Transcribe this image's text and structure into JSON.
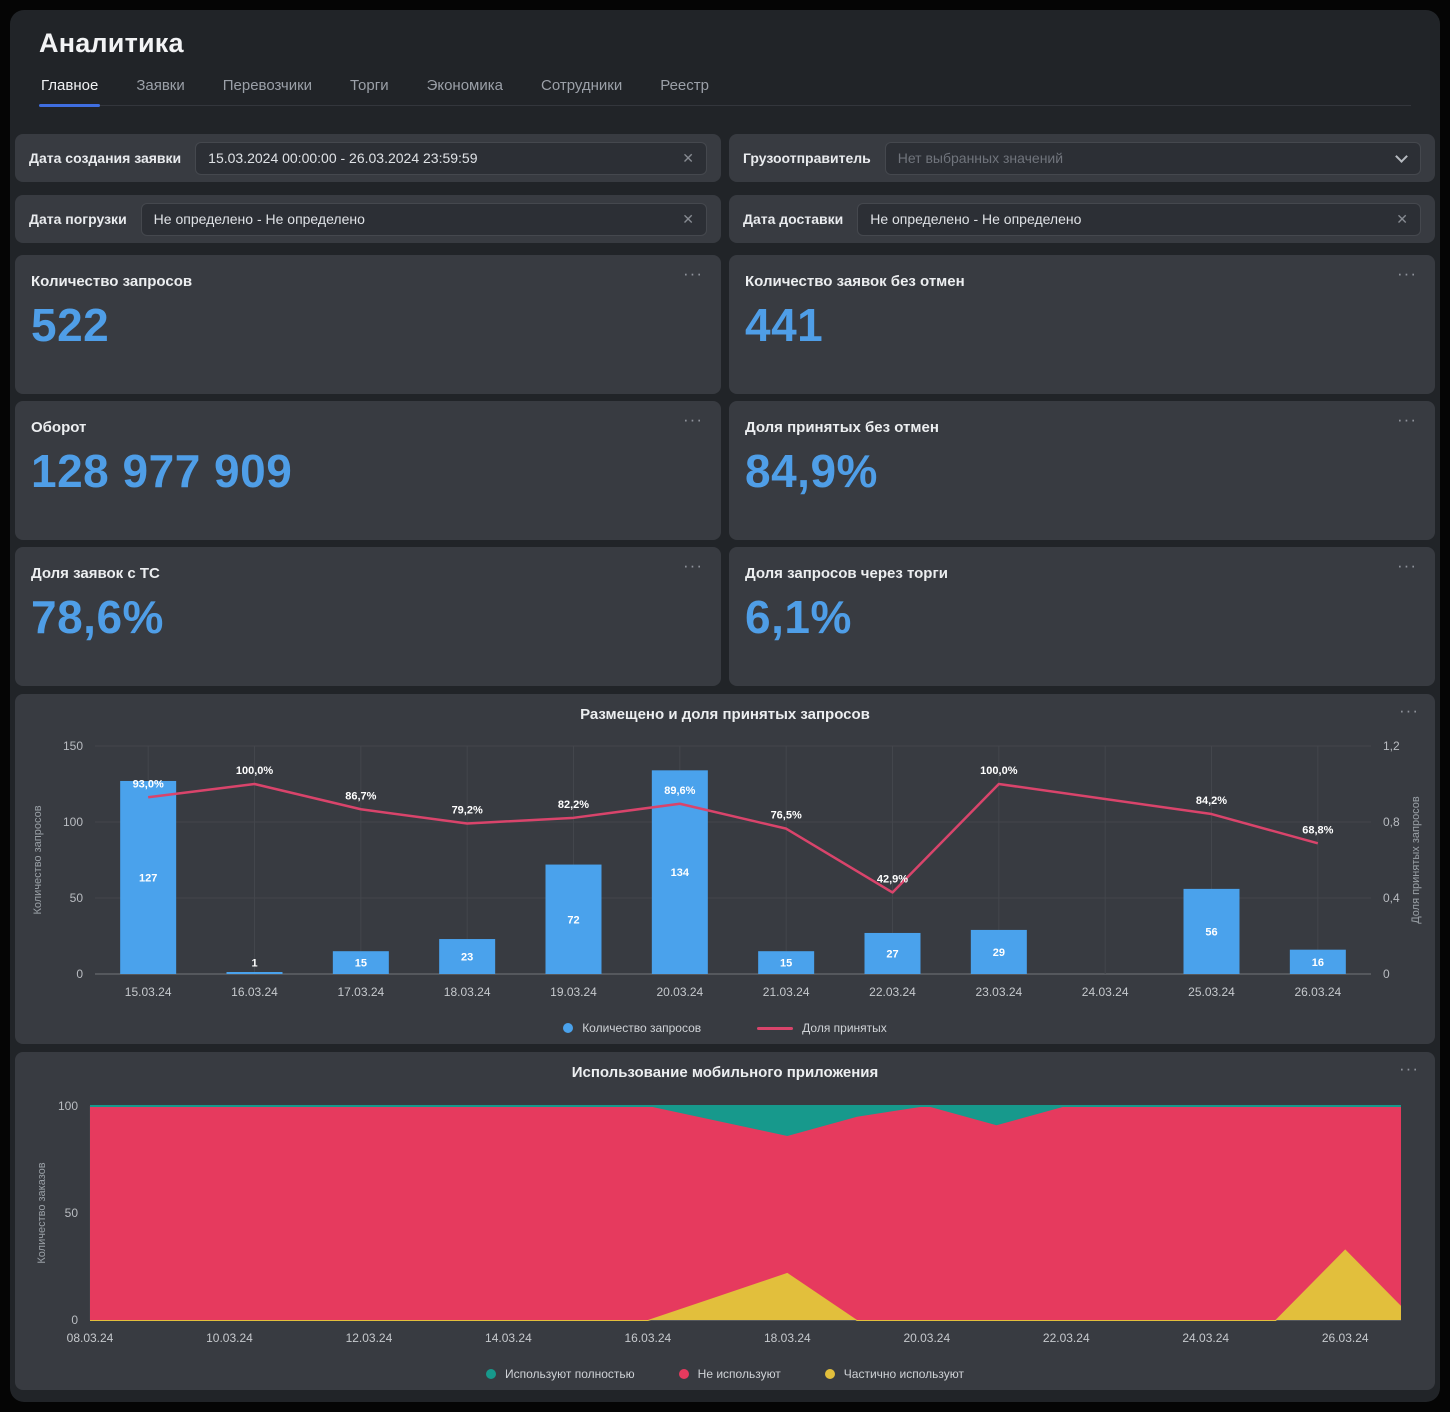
{
  "page_title": "Аналитика",
  "icons": {
    "more_menu": "···",
    "clear": "✕"
  },
  "colors": {
    "accent_blue": "#4f9ee7",
    "bar_blue": "#4aa2ec",
    "line_red": "#d9446b",
    "tab_underline": "#3f6ee0",
    "card_bg": "#383b41",
    "page_bg": "#212428"
  },
  "tabs": [
    {
      "label": "Главное",
      "active": true
    },
    {
      "label": "Заявки",
      "active": false
    },
    {
      "label": "Перевозчики",
      "active": false
    },
    {
      "label": "Торги",
      "active": false
    },
    {
      "label": "Экономика",
      "active": false
    },
    {
      "label": "Сотрудники",
      "active": false
    },
    {
      "label": "Реестр",
      "active": false
    }
  ],
  "filters": {
    "creation_date": {
      "label": "Дата создания заявки",
      "value": "15.03.2024 00:00:00 - 26.03.2024 23:59:59"
    },
    "shipper": {
      "label": "Грузоотправитель",
      "placeholder": "Нет выбранных значений"
    },
    "loading_date": {
      "label": "Дата погрузки",
      "value": "Не определено - Не определено"
    },
    "delivery_date": {
      "label": "Дата доставки",
      "value": "Не определено - Не определено"
    }
  },
  "kpi_cards": [
    {
      "title": "Количество запросов",
      "value": "522"
    },
    {
      "title": "Количество заявок без отмен",
      "value": "441"
    },
    {
      "title": "Оборот",
      "value": "128 977 909"
    },
    {
      "title": "Доля принятых без отмен",
      "value": "84,9%"
    },
    {
      "title": "Доля заявок с ТС",
      "value": "78,6%"
    },
    {
      "title": "Доля запросов через торги",
      "value": "6,1%"
    }
  ],
  "chart_data": [
    {
      "type": "bar",
      "title": "Размещено и доля принятых запросов",
      "categories": [
        "15.03.24",
        "16.03.24",
        "17.03.24",
        "18.03.24",
        "19.03.24",
        "20.03.24",
        "21.03.24",
        "22.03.24",
        "23.03.24",
        "24.03.24",
        "25.03.24",
        "26.03.24"
      ],
      "bar_series": {
        "name": "Количество запросов",
        "color": "#4aa2ec",
        "values": [
          127,
          1,
          15,
          23,
          72,
          134,
          15,
          27,
          29,
          null,
          56,
          16
        ],
        "labels": [
          "127",
          "1",
          "15",
          "23",
          "72",
          "134",
          "15",
          "27",
          "29",
          "",
          "56",
          "16"
        ]
      },
      "line_series": {
        "name": "Доля принятых",
        "color": "#d9446b",
        "values": [
          0.93,
          1.0,
          0.867,
          0.792,
          0.822,
          0.896,
          0.765,
          0.429,
          1.0,
          null,
          0.842,
          0.688
        ],
        "labels": [
          "93,0%",
          "100,0%",
          "86,7%",
          "79,2%",
          "82,2%",
          "89,6%",
          "76,5%",
          "42,9%",
          "100,0%",
          "",
          "84,2%",
          "68,8%"
        ]
      },
      "left_axis": {
        "label": "Количество запросов",
        "ticks": [
          0,
          50,
          100,
          150
        ],
        "max": 150
      },
      "right_axis": {
        "label": "Доля принятых запросов",
        "ticks": [
          "0",
          "0,4",
          "0,8",
          "1,2"
        ],
        "tick_values": [
          0,
          0.4,
          0.8,
          1.2
        ],
        "max": 1.2
      },
      "legend_position": "bottom"
    },
    {
      "type": "area",
      "title": "Использование мобильного приложения",
      "x_tick_labels": [
        "08.03.24",
        "10.03.24",
        "12.03.24",
        "14.03.24",
        "16.03.24",
        "18.03.24",
        "20.03.24",
        "22.03.24",
        "24.03.24",
        "26.03.24"
      ],
      "x_days_range": "08.03.24 - 27.03.24 (daily points, last point clipped at right edge)",
      "series": [
        {
          "name": "Частично используют",
          "color": "#e2bf3c",
          "values": [
            0,
            0,
            0,
            0,
            0,
            0,
            0,
            0,
            0,
            11,
            22,
            0,
            0,
            0,
            0,
            0,
            0,
            0,
            33,
            0
          ]
        },
        {
          "name": "Не используют",
          "color": "#e63a5e",
          "values": [
            100,
            100,
            100,
            100,
            100,
            100,
            100,
            100,
            100,
            82,
            64,
            95,
            100,
            91,
            100,
            100,
            100,
            100,
            67,
            100
          ]
        },
        {
          "name": "Используют полностью",
          "color": "#17998c",
          "values": [
            0,
            0,
            0,
            0,
            0,
            0,
            0,
            0,
            0,
            7,
            14,
            5,
            0,
            9,
            0,
            0,
            0,
            0,
            0,
            0
          ]
        }
      ],
      "stacked_to": 100,
      "y_axis": {
        "label": "Количество заказов",
        "ticks": [
          0,
          50,
          100
        ],
        "max": 100
      },
      "legend_order": [
        "Используют полностью",
        "Не используют",
        "Частично используют"
      ],
      "legend_position": "bottom"
    }
  ]
}
